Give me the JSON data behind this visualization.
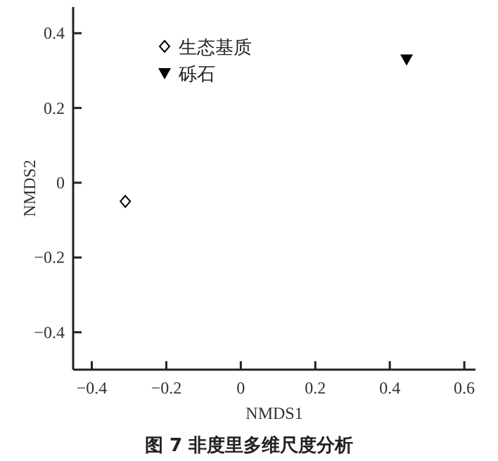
{
  "chart_data": {
    "type": "scatter",
    "title": "图 7 非度里多维尺度分析",
    "xlabel": "NMDS1",
    "ylabel": "NMDS2",
    "xlim": [
      -0.45,
      0.63
    ],
    "ylim": [
      -0.5,
      0.47
    ],
    "xticks": [
      {
        "value": -0.4,
        "label": "−0.4"
      },
      {
        "value": -0.2,
        "label": "−0.2"
      },
      0,
      0.2,
      0.4,
      0.6
    ],
    "yticks": [
      {
        "value": -0.4,
        "label": "−0.4"
      },
      {
        "value": -0.2,
        "label": "−0.2"
      },
      0,
      0.2,
      0.4
    ],
    "legend": "top left",
    "grid": false,
    "series": [
      {
        "name": "生态基质",
        "color": "#000000",
        "marker": "diamond",
        "x": [
          -0.31
        ],
        "values": [
          -0.05
        ]
      },
      {
        "name": "砾石",
        "color": "#000000",
        "marker": "triangle",
        "x": [
          0.445
        ],
        "values": [
          0.33
        ]
      }
    ]
  }
}
